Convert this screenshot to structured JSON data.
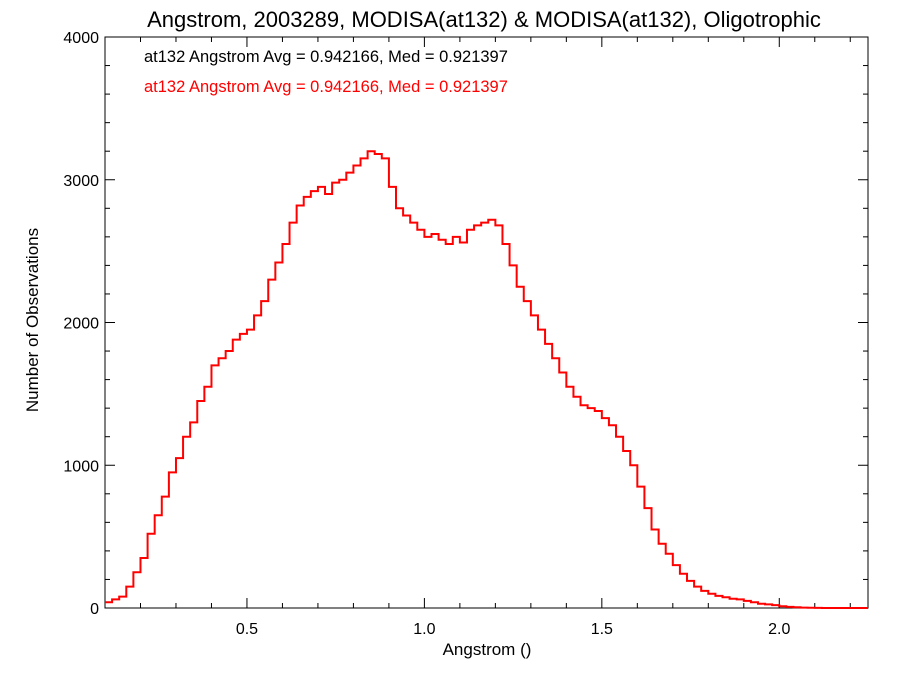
{
  "chart_data": {
    "type": "line",
    "title": "Angstrom, 2003289, MODISA(at132) & MODISA(at132), Oligotrophic",
    "xlabel": "Angstrom ()",
    "ylabel": "Number of Observations",
    "xlim": [
      0.1,
      2.25
    ],
    "ylim": [
      0,
      4000
    ],
    "x_ticks": [
      0.5,
      1.0,
      1.5,
      2.0
    ],
    "x_tick_labels": [
      "0.5",
      "1.0",
      "1.5",
      "2.0"
    ],
    "y_ticks": [
      0,
      1000,
      2000,
      3000,
      4000
    ],
    "y_tick_labels": [
      "0",
      "1000",
      "2000",
      "3000",
      "4000"
    ],
    "x_minor_step": 0.1,
    "y_minor_step": 200,
    "grid": false,
    "step_plot": true,
    "annotations": [
      {
        "text": "at132 Angstrom Avg = 0.942166, Med = 0.921397",
        "color": "#000000"
      },
      {
        "text": "at132 Angstrom Avg = 0.942166, Med = 0.921397",
        "color": "#ff0000"
      }
    ],
    "series": [
      {
        "color": "#ff0000",
        "x": [
          0.1,
          0.12,
          0.14,
          0.16,
          0.18,
          0.2,
          0.22,
          0.24,
          0.26,
          0.28,
          0.3,
          0.32,
          0.34,
          0.36,
          0.38,
          0.4,
          0.42,
          0.44,
          0.46,
          0.48,
          0.5,
          0.52,
          0.54,
          0.56,
          0.58,
          0.6,
          0.62,
          0.64,
          0.66,
          0.68,
          0.7,
          0.72,
          0.74,
          0.76,
          0.78,
          0.8,
          0.82,
          0.84,
          0.86,
          0.88,
          0.9,
          0.92,
          0.94,
          0.96,
          0.98,
          1.0,
          1.02,
          1.04,
          1.06,
          1.08,
          1.1,
          1.12,
          1.14,
          1.16,
          1.18,
          1.2,
          1.22,
          1.24,
          1.26,
          1.28,
          1.3,
          1.32,
          1.34,
          1.36,
          1.38,
          1.4,
          1.42,
          1.44,
          1.46,
          1.48,
          1.5,
          1.52,
          1.54,
          1.56,
          1.58,
          1.6,
          1.62,
          1.64,
          1.66,
          1.68,
          1.7,
          1.72,
          1.74,
          1.76,
          1.78,
          1.8,
          1.82,
          1.84,
          1.86,
          1.88,
          1.9,
          1.92,
          1.94,
          1.96,
          1.98,
          2.0,
          2.02,
          2.04,
          2.06,
          2.08,
          2.1,
          2.12,
          2.14,
          2.16,
          2.18,
          2.2,
          2.22,
          2.24
        ],
        "y": [
          40,
          60,
          80,
          150,
          250,
          350,
          520,
          650,
          780,
          950,
          1050,
          1200,
          1300,
          1450,
          1550,
          1700,
          1750,
          1800,
          1880,
          1920,
          1950,
          2050,
          2150,
          2300,
          2420,
          2550,
          2700,
          2820,
          2880,
          2920,
          2950,
          2900,
          2980,
          3000,
          3050,
          3100,
          3150,
          3200,
          3180,
          3150,
          2950,
          2800,
          2750,
          2700,
          2650,
          2600,
          2620,
          2580,
          2550,
          2600,
          2560,
          2650,
          2680,
          2700,
          2720,
          2680,
          2550,
          2400,
          2250,
          2150,
          2050,
          1950,
          1850,
          1750,
          1650,
          1550,
          1480,
          1420,
          1400,
          1380,
          1330,
          1280,
          1200,
          1100,
          1000,
          850,
          700,
          550,
          450,
          380,
          300,
          240,
          190,
          150,
          120,
          100,
          85,
          75,
          65,
          60,
          50,
          40,
          30,
          25,
          20,
          12,
          8,
          5,
          3,
          2,
          1,
          0,
          0,
          0,
          0,
          0,
          0,
          0
        ]
      }
    ]
  }
}
